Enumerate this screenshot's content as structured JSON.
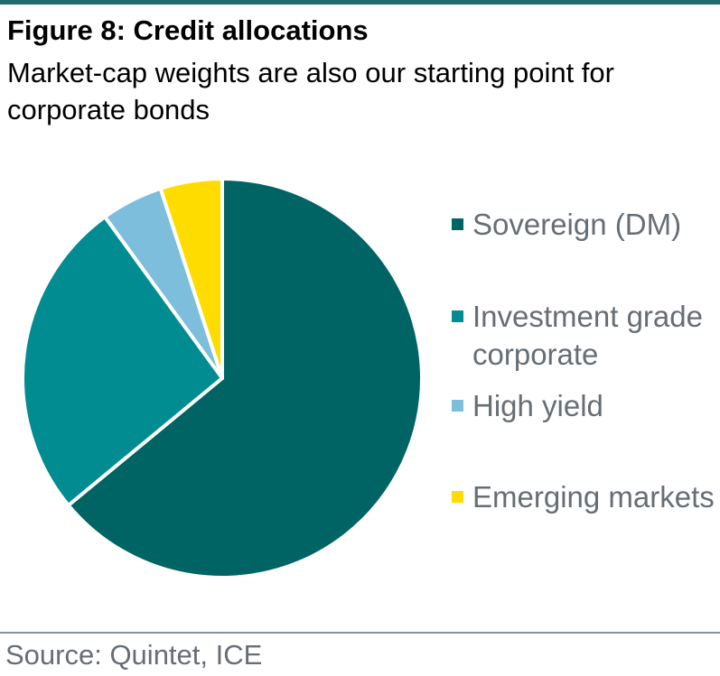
{
  "header": {
    "title": "Figure 8: Credit allocations",
    "subtitle": "Market-cap weights are also our starting point for corporate bonds"
  },
  "footer": {
    "source": "Source: Quintet, ICE"
  },
  "chart_data": {
    "type": "pie",
    "title": "Figure 8: Credit allocations",
    "subtitle": "Market-cap weights are also our starting point for corporate bonds",
    "legend_position": "right",
    "slices": [
      {
        "label": "Sovereign (DM)",
        "value": 64,
        "color": "#006464"
      },
      {
        "label": "Investment grade corporate",
        "value": 26,
        "color": "#008c91"
      },
      {
        "label": "High yield",
        "value": 5,
        "color": "#7dbedc"
      },
      {
        "label": "Emerging markets",
        "value": 5,
        "color": "#ffdc00"
      }
    ]
  }
}
